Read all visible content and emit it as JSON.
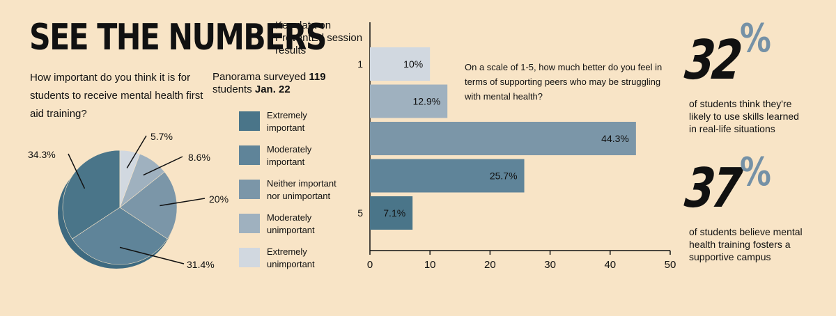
{
  "header": {
    "title": "SEE THE NUMBERS",
    "subtitle": "Key data on PreventEd session results"
  },
  "survey_note": {
    "prefix": "Panorama surveyed ",
    "count": "119",
    "middle": " students ",
    "date": "Jan. 22"
  },
  "colors": {
    "background": "#f8e4c6",
    "extremely_important": "#4a7589",
    "moderately_important": "#5f8499",
    "neither": "#7b96a8",
    "moderately_unimportant": "#9fb1bf",
    "extremely_unimportant": "#d1d8e0",
    "accent_percent": "#7591a6"
  },
  "legend": [
    {
      "label_line1": "Extremely",
      "label_line2": "important",
      "color": "#4a7589"
    },
    {
      "label_line1": "Moderately",
      "label_line2": "important",
      "color": "#5f8499"
    },
    {
      "label_line1": "Neither important",
      "label_line2": "nor unimportant",
      "color": "#7b96a8"
    },
    {
      "label_line1": "Moderately",
      "label_line2": "unimportant",
      "color": "#9fb1bf"
    },
    {
      "label_line1": "Extremely",
      "label_line2": "unimportant",
      "color": "#d1d8e0"
    }
  ],
  "stats": [
    {
      "number": "32",
      "symbol": "%",
      "text": "of students think they're likely to use skills learned in real-life situations"
    },
    {
      "number": "37",
      "symbol": "%",
      "text": "of students believe mental health training fosters a supportive campus"
    }
  ],
  "chart_data": [
    {
      "type": "pie",
      "title": "How important do you think it is for students to receive mental health first aid training?",
      "categories": [
        "Extremely important",
        "Moderately important",
        "Neither important nor unimportant",
        "Moderately unimportant",
        "Extremely unimportant"
      ],
      "values": [
        34.3,
        31.4,
        20,
        8.6,
        5.7
      ],
      "labels": [
        "34.3%",
        "31.4%",
        "20%",
        "8.6%",
        "5.7%"
      ]
    },
    {
      "type": "bar",
      "orientation": "horizontal",
      "title": "On a scale of 1-5, how much better do you feel in terms of supporting peers who may be struggling with mental health?",
      "categories": [
        "1",
        "2",
        "3",
        "4",
        "5"
      ],
      "category_labels_shown": [
        "1",
        "5"
      ],
      "values": [
        10,
        12.9,
        44.3,
        25.7,
        7.1
      ],
      "value_labels": [
        "10%",
        "12.9%",
        "44.3%",
        "25.7%",
        "7.1%"
      ],
      "colors": [
        "#d1d8e0",
        "#9fb1bf",
        "#7b96a8",
        "#5f8499",
        "#4a7589"
      ],
      "xlim": [
        0,
        50
      ],
      "xticks": [
        "0",
        "10",
        "20",
        "30",
        "40",
        "50"
      ],
      "grid": false
    }
  ]
}
